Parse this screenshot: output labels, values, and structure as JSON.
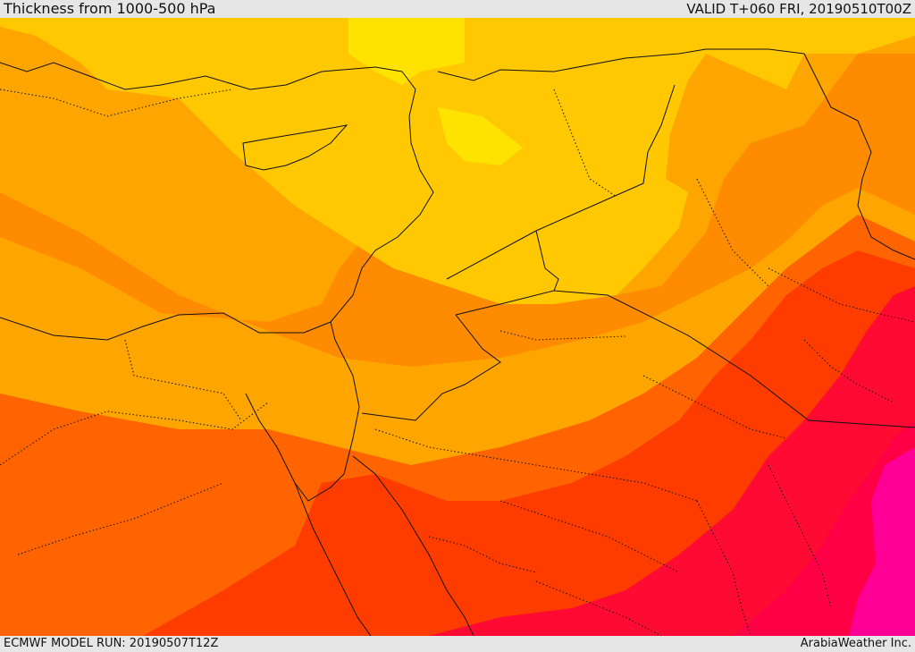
{
  "header": {
    "title": "Thickness from 1000-500 hPa",
    "valid": "VALID T+060 FRI, 20190510T00Z"
  },
  "footer": {
    "model_run": "ECMWF MODEL RUN: 20190507T12Z",
    "credit": "ArabiaWeather Inc."
  },
  "colors": {
    "yellow": "#ffe300",
    "gold": "#ffc800",
    "light_orange": "#ffa500",
    "orange": "#ff8c00",
    "dark_orange": "#ff6400",
    "red_orange": "#ff3c00",
    "red": "#ff0a32",
    "crimson": "#ff0046",
    "magenta": "#ff0096",
    "border_line": "#111111"
  }
}
